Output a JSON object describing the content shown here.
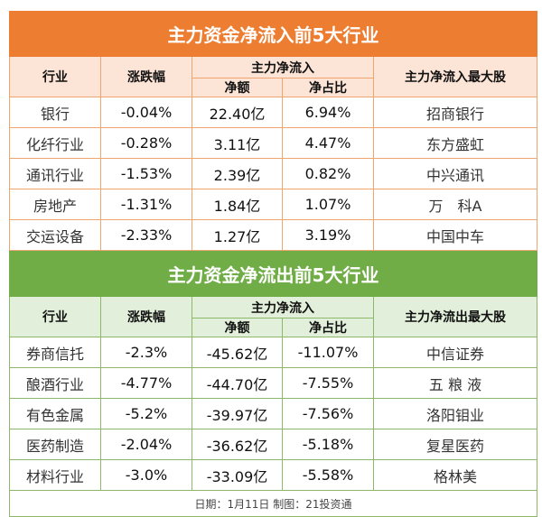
{
  "inflow": {
    "title": "主力资金净流入前5大行业",
    "headers": {
      "industry": "行业",
      "change": "涨跌幅",
      "group": "主力净流入",
      "amount": "净额",
      "ratio": "净占比",
      "top_stock": "主力净流入最大股"
    },
    "rows": [
      {
        "industry": "银行",
        "change": "-0.04%",
        "amount": "22.40亿",
        "ratio": "6.94%",
        "top_stock": "招商银行"
      },
      {
        "industry": "化纤行业",
        "change": "-0.28%",
        "amount": "3.11亿",
        "ratio": "4.47%",
        "top_stock": "东方盛虹"
      },
      {
        "industry": "通讯行业",
        "change": "-1.53%",
        "amount": "2.39亿",
        "ratio": "0.82%",
        "top_stock": "中兴通讯"
      },
      {
        "industry": "房地产",
        "change": "-1.31%",
        "amount": "1.84亿",
        "ratio": "1.07%",
        "top_stock": "万　科A"
      },
      {
        "industry": "交运设备",
        "change": "-2.33%",
        "amount": "1.27亿",
        "ratio": "3.19%",
        "top_stock": "中国中车"
      }
    ]
  },
  "outflow": {
    "title": "主力资金净流出前5大行业",
    "headers": {
      "industry": "行业",
      "change": "涨跌幅",
      "group": "主力净流入",
      "amount": "净额",
      "ratio": "净占比",
      "top_stock": "主力净流出最大股"
    },
    "rows": [
      {
        "industry": "券商信托",
        "change": "-2.3%",
        "amount": "-45.62亿",
        "ratio": "-11.07%",
        "top_stock": "中信证券"
      },
      {
        "industry": "酿酒行业",
        "change": "-4.77%",
        "amount": "-44.70亿",
        "ratio": "-7.55%",
        "top_stock": "五 粮 液"
      },
      {
        "industry": "有色金属",
        "change": "-5.2%",
        "amount": "-39.97亿",
        "ratio": "-7.56%",
        "top_stock": "洛阳钼业"
      },
      {
        "industry": "医药制造",
        "change": "-2.04%",
        "amount": "-36.62亿",
        "ratio": "-5.18%",
        "top_stock": "复星医药"
      },
      {
        "industry": "材料行业",
        "change": "-3.0%",
        "amount": "-33.09亿",
        "ratio": "-5.58%",
        "top_stock": "格林美"
      }
    ]
  },
  "footer": "日期：1月11日 制图：21投资通"
}
